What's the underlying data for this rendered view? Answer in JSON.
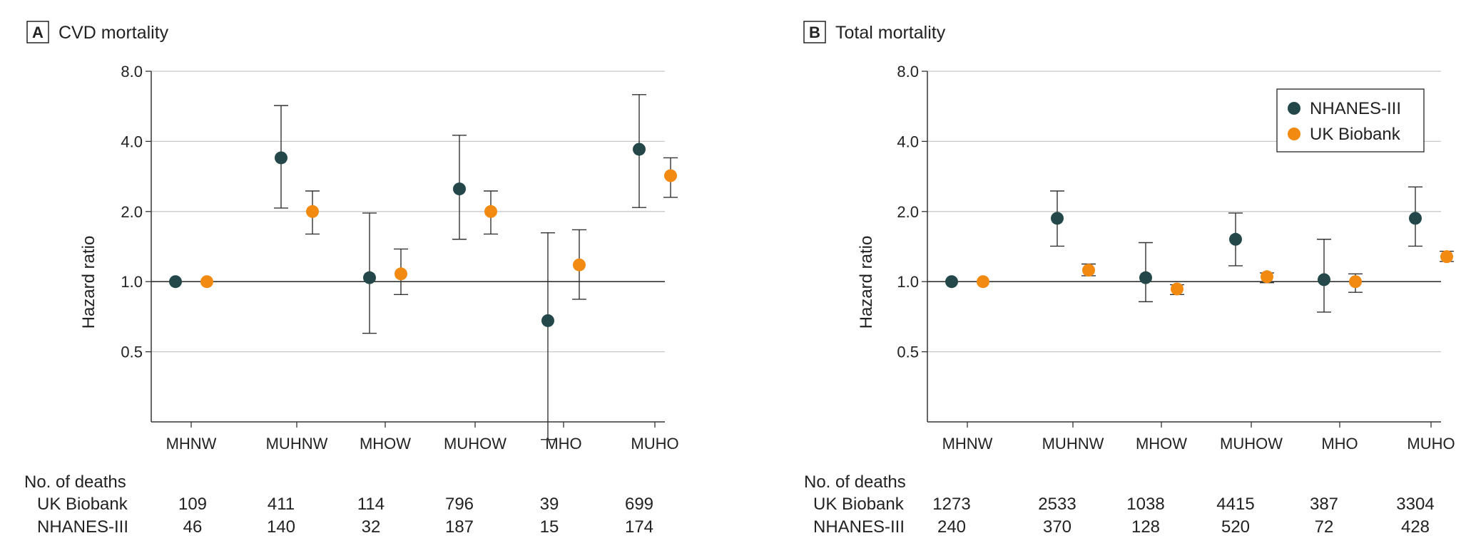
{
  "colors": {
    "nhanes": "#24484a",
    "ukb": "#f28a12",
    "grid": "#c8c8c8",
    "axis": "#333333"
  },
  "chart_data": [
    {
      "type": "scatter",
      "panel_letter": "A",
      "title": "CVD mortality",
      "ylabel": "Hazard ratio",
      "yscale": "log",
      "ylim": [
        0.25,
        8.0
      ],
      "yticks": [
        8.0,
        4.0,
        2.0,
        1.0,
        0.5
      ],
      "ytick_labels": [
        "8.0",
        "4.0",
        "2.0",
        "1.0",
        "0.5"
      ],
      "reference_line": 1.0,
      "categories": [
        "MHNW",
        "MUHNW",
        "MHOW",
        "MUHOW",
        "MHO",
        "MUHO"
      ],
      "series": [
        {
          "name": "NHANES-III",
          "color_key": "nhanes",
          "values": [
            1.0,
            3.4,
            1.04,
            2.5,
            0.68,
            3.7
          ],
          "lower": [
            null,
            2.07,
            0.6,
            1.52,
            0.21,
            2.08
          ],
          "upper": [
            null,
            5.7,
            1.97,
            4.25,
            1.62,
            6.35
          ]
        },
        {
          "name": "UK Biobank",
          "color_key": "ukb",
          "values": [
            1.0,
            2.0,
            1.08,
            2.0,
            1.18,
            2.85
          ],
          "lower": [
            null,
            1.6,
            0.88,
            1.6,
            0.84,
            2.3
          ],
          "upper": [
            null,
            2.45,
            1.38,
            2.45,
            1.67,
            3.4
          ]
        }
      ],
      "deaths_label": "No. of deaths",
      "deaths_rows": [
        {
          "label": "UK Biobank",
          "values": [
            "109",
            "411",
            "114",
            "796",
            "39",
            "699"
          ]
        },
        {
          "label": "NHANES-III",
          "values": [
            "46",
            "140",
            "32",
            "187",
            "15",
            "174"
          ]
        }
      ]
    },
    {
      "type": "scatter",
      "panel_letter": "B",
      "title": "Total mortality",
      "ylabel": "Hazard ratio",
      "yscale": "log",
      "ylim": [
        0.25,
        8.0
      ],
      "yticks": [
        8.0,
        4.0,
        2.0,
        1.0,
        0.5
      ],
      "ytick_labels": [
        "8.0",
        "4.0",
        "2.0",
        "1.0",
        "0.5"
      ],
      "reference_line": 1.0,
      "legend": {
        "position": "top-right",
        "entries": [
          "NHANES-III",
          "UK Biobank"
        ]
      },
      "categories": [
        "MHNW",
        "MUHNW",
        "MHOW",
        "MUHOW",
        "MHO",
        "MUHO"
      ],
      "series": [
        {
          "name": "NHANES-III",
          "color_key": "nhanes",
          "values": [
            1.0,
            1.87,
            1.04,
            1.52,
            1.02,
            1.87
          ],
          "lower": [
            null,
            1.42,
            0.82,
            1.17,
            0.74,
            1.42
          ],
          "upper": [
            null,
            2.45,
            1.47,
            1.97,
            1.52,
            2.55
          ]
        },
        {
          "name": "UK Biobank",
          "color_key": "ukb",
          "values": [
            1.0,
            1.12,
            0.93,
            1.05,
            1.0,
            1.28
          ],
          "lower": [
            null,
            1.06,
            0.88,
            0.99,
            0.9,
            1.22
          ],
          "upper": [
            null,
            1.19,
            0.97,
            1.09,
            1.08,
            1.35
          ]
        }
      ],
      "deaths_label": "No. of deaths",
      "deaths_rows": [
        {
          "label": "UK Biobank",
          "values": [
            "1273",
            "2533",
            "1038",
            "4415",
            "387",
            "3304"
          ]
        },
        {
          "label": "NHANES-III",
          "values": [
            "240",
            "370",
            "128",
            "520",
            "72",
            "428"
          ]
        }
      ]
    }
  ]
}
